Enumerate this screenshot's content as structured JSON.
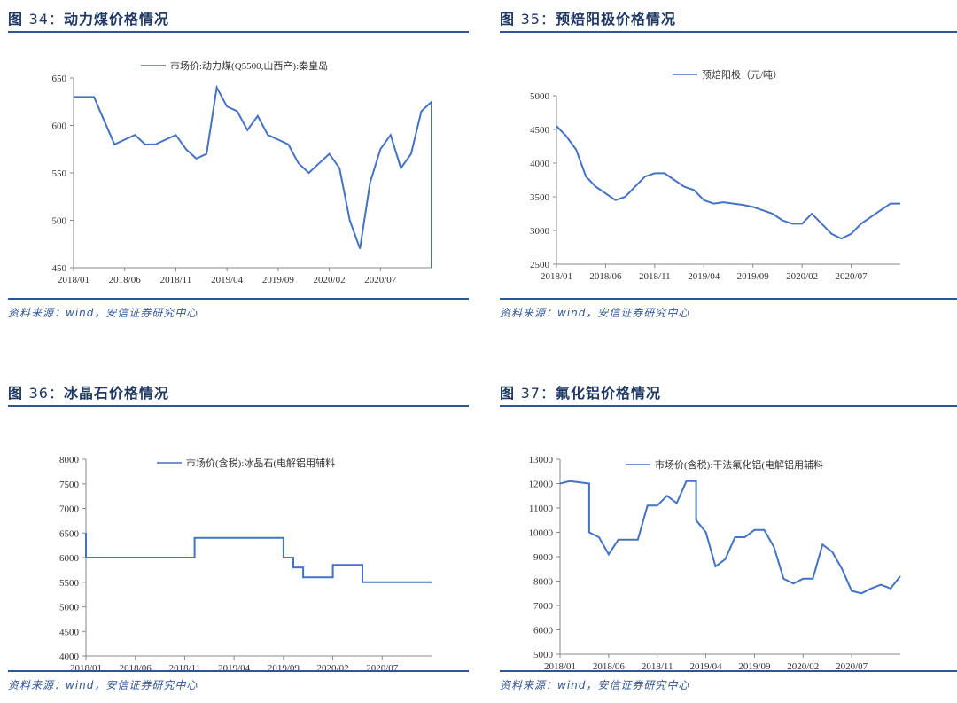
{
  "source_text": "资料来源：wind，安信证券研究中心",
  "charts": [
    {
      "fig_label": "图 ",
      "fig_num": "34：",
      "title": "动力煤价格情况",
      "legend": "市场价:动力煤(Q5500,山西产):秦皇岛",
      "chart_data": {
        "type": "line",
        "title": "动力煤价格情况",
        "x_ticks": [
          "2018/01",
          "2018/06",
          "2018/11",
          "2019/04",
          "2019/09",
          "2020/02",
          "2020/07"
        ],
        "x_range": [
          "2018/01",
          "2020/12"
        ],
        "ylim": [
          450,
          650
        ],
        "y_ticks": [
          450,
          500,
          550,
          600,
          650
        ],
        "series": [
          {
            "name": "市场价:动力煤(Q5500,山西产):秦皇岛",
            "points": [
              [
                "2018/01",
                630
              ],
              [
                "2018/03",
                630
              ],
              [
                "2018/04",
                605
              ],
              [
                "2018/05",
                580
              ],
              [
                "2018/06",
                585
              ],
              [
                "2018/07",
                590
              ],
              [
                "2018/08",
                580
              ],
              [
                "2018/09",
                580
              ],
              [
                "2018/10",
                585
              ],
              [
                "2018/11",
                590
              ],
              [
                "2018/12",
                575
              ],
              [
                "2019/01",
                565
              ],
              [
                "2019/02",
                570
              ],
              [
                "2019/03",
                640
              ],
              [
                "2019/04",
                620
              ],
              [
                "2019/05",
                615
              ],
              [
                "2019/06",
                595
              ],
              [
                "2019/07",
                610
              ],
              [
                "2019/08",
                590
              ],
              [
                "2019/09",
                585
              ],
              [
                "2019/10",
                580
              ],
              [
                "2019/11",
                560
              ],
              [
                "2019/12",
                550
              ],
              [
                "2020/01",
                560
              ],
              [
                "2020/02",
                570
              ],
              [
                "2020/03",
                555
              ],
              [
                "2020/04",
                500
              ],
              [
                "2020/05",
                470
              ],
              [
                "2020/06",
                540
              ],
              [
                "2020/07",
                575
              ],
              [
                "2020/08",
                590
              ],
              [
                "2020/09",
                555
              ],
              [
                "2020/10",
                570
              ],
              [
                "2020/11",
                615
              ],
              [
                "2020/12",
                625
              ],
              [
                "2020/12",
                450
              ]
            ]
          }
        ]
      }
    },
    {
      "fig_label": "图 ",
      "fig_num": "35：",
      "title": "预焙阳极价格情况",
      "legend": "预焙阳极（元/吨）",
      "chart_data": {
        "type": "line",
        "title": "预焙阳极价格情况",
        "x_ticks": [
          "2018/01",
          "2018/06",
          "2018/11",
          "2019/04",
          "2019/09",
          "2020/02",
          "2020/07"
        ],
        "x_range": [
          "2018/01",
          "2020/12"
        ],
        "ylim": [
          2500,
          5000
        ],
        "y_ticks": [
          2500,
          3000,
          3500,
          4000,
          4500,
          5000
        ],
        "series": [
          {
            "name": "预焙阳极（元/吨）",
            "points": [
              [
                "2018/01",
                4550
              ],
              [
                "2018/02",
                4400
              ],
              [
                "2018/03",
                4200
              ],
              [
                "2018/04",
                3800
              ],
              [
                "2018/05",
                3650
              ],
              [
                "2018/06",
                3550
              ],
              [
                "2018/07",
                3450
              ],
              [
                "2018/08",
                3500
              ],
              [
                "2018/09",
                3650
              ],
              [
                "2018/10",
                3800
              ],
              [
                "2018/11",
                3850
              ],
              [
                "2018/12",
                3850
              ],
              [
                "2019/01",
                3750
              ],
              [
                "2019/02",
                3650
              ],
              [
                "2019/03",
                3600
              ],
              [
                "2019/04",
                3450
              ],
              [
                "2019/05",
                3400
              ],
              [
                "2019/06",
                3420
              ],
              [
                "2019/07",
                3400
              ],
              [
                "2019/08",
                3380
              ],
              [
                "2019/09",
                3350
              ],
              [
                "2019/10",
                3300
              ],
              [
                "2019/11",
                3250
              ],
              [
                "2019/12",
                3150
              ],
              [
                "2020/01",
                3100
              ],
              [
                "2020/02",
                3100
              ],
              [
                "2020/03",
                3250
              ],
              [
                "2020/04",
                3100
              ],
              [
                "2020/05",
                2950
              ],
              [
                "2020/06",
                2880
              ],
              [
                "2020/07",
                2950
              ],
              [
                "2020/08",
                3100
              ],
              [
                "2020/09",
                3200
              ],
              [
                "2020/10",
                3300
              ],
              [
                "2020/11",
                3400
              ],
              [
                "2020/12",
                3400
              ]
            ]
          }
        ]
      }
    },
    {
      "fig_label": "图 ",
      "fig_num": "36：",
      "title": "冰晶石价格情况",
      "legend": "市场价(含税):冰晶石(电解铝用辅料",
      "chart_data": {
        "type": "line",
        "title": "冰晶石价格情况",
        "x_ticks": [
          "2018/01",
          "2018/06",
          "2018/11",
          "2019/04",
          "2019/09",
          "2020/02",
          "2020/07"
        ],
        "x_range": [
          "2018/01",
          "2020/12"
        ],
        "ylim": [
          4000,
          8000
        ],
        "y_ticks": [
          4000,
          4500,
          5000,
          5500,
          6000,
          6500,
          7000,
          7500,
          8000
        ],
        "series": [
          {
            "name": "市场价(含税):冰晶石(电解铝用辅料",
            "points": [
              [
                "2018/01",
                6500
              ],
              [
                "2018/01",
                6000
              ],
              [
                "2018/12",
                6000
              ],
              [
                "2018/12",
                6400
              ],
              [
                "2019/09",
                6400
              ],
              [
                "2019/09",
                6000
              ],
              [
                "2019/10",
                6000
              ],
              [
                "2019/10",
                5800
              ],
              [
                "2019/11",
                5800
              ],
              [
                "2019/11",
                5600
              ],
              [
                "2020/02",
                5600
              ],
              [
                "2020/02",
                5850
              ],
              [
                "2020/05",
                5850
              ],
              [
                "2020/05",
                5500
              ],
              [
                "2020/12",
                5500
              ]
            ]
          }
        ]
      }
    },
    {
      "fig_label": "图 ",
      "fig_num": "37：",
      "title": "氟化铝价格情况",
      "legend": "市场价(含税):干法氟化铝(电解铝用辅料",
      "chart_data": {
        "type": "line",
        "title": "氟化铝价格情况",
        "x_ticks": [
          "2018/01",
          "2018/06",
          "2018/11",
          "2019/04",
          "2019/09",
          "2020/02",
          "2020/07"
        ],
        "x_range": [
          "2018/01",
          "2020/12"
        ],
        "ylim": [
          5000,
          13000
        ],
        "y_ticks": [
          5000,
          6000,
          7000,
          8000,
          9000,
          10000,
          11000,
          12000,
          13000
        ],
        "series": [
          {
            "name": "市场价(含税):干法氟化铝(电解铝用辅料",
            "points": [
              [
                "2018/01",
                12000
              ],
              [
                "2018/02",
                12100
              ],
              [
                "2018/04",
                12000
              ],
              [
                "2018/04",
                10000
              ],
              [
                "2018/05",
                9800
              ],
              [
                "2018/06",
                9100
              ],
              [
                "2018/07",
                9700
              ],
              [
                "2018/09",
                9700
              ],
              [
                "2018/10",
                11100
              ],
              [
                "2018/11",
                11100
              ],
              [
                "2018/12",
                11500
              ],
              [
                "2019/01",
                11200
              ],
              [
                "2019/02",
                12100
              ],
              [
                "2019/03",
                12100
              ],
              [
                "2019/03",
                10500
              ],
              [
                "2019/04",
                10000
              ],
              [
                "2019/05",
                8600
              ],
              [
                "2019/06",
                8900
              ],
              [
                "2019/07",
                9800
              ],
              [
                "2019/08",
                9800
              ],
              [
                "2019/09",
                10100
              ],
              [
                "2019/10",
                10100
              ],
              [
                "2019/11",
                9400
              ],
              [
                "2019/12",
                8100
              ],
              [
                "2020/01",
                7900
              ],
              [
                "2020/02",
                8100
              ],
              [
                "2020/03",
                8100
              ],
              [
                "2020/04",
                9500
              ],
              [
                "2020/05",
                9200
              ],
              [
                "2020/06",
                8500
              ],
              [
                "2020/07",
                7600
              ],
              [
                "2020/08",
                7500
              ],
              [
                "2020/09",
                7700
              ],
              [
                "2020/10",
                7850
              ],
              [
                "2020/11",
                7700
              ],
              [
                "2020/12",
                8200
              ]
            ]
          }
        ]
      }
    }
  ]
}
